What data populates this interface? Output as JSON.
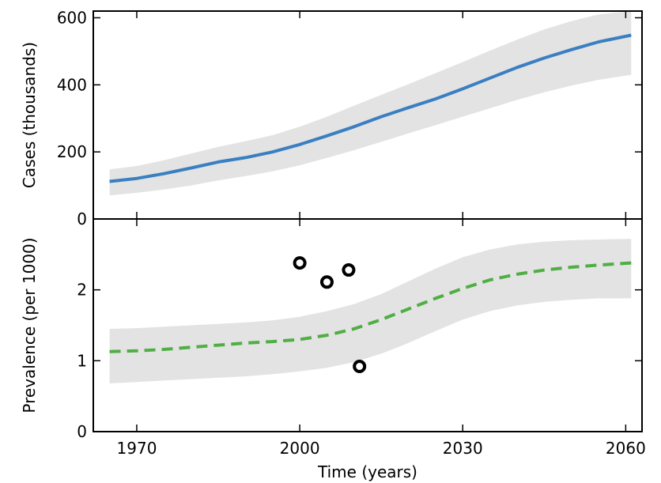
{
  "chart_data": [
    {
      "type": "area",
      "panel": "top",
      "ylabel": "Cases (thousands)",
      "xlabel": "",
      "xlim": [
        1962,
        2063
      ],
      "ylim": [
        0,
        620
      ],
      "xticks": [
        1970,
        2000,
        2030,
        2060
      ],
      "yticks": [
        0,
        200,
        400,
        600
      ],
      "ytick_labels": [
        "0",
        "200",
        "400",
        "600"
      ],
      "grid": false,
      "series": [
        {
          "style": "solid-line",
          "color": "#3a7fc1",
          "x": [
            1965,
            1970,
            1975,
            1980,
            1985,
            1990,
            1995,
            2000,
            2005,
            2010,
            2015,
            2020,
            2025,
            2030,
            2035,
            2040,
            2045,
            2050,
            2055,
            2061
          ],
          "y": [
            112,
            121,
            135,
            152,
            170,
            183,
            200,
            222,
            248,
            275,
            305,
            332,
            358,
            388,
            420,
            452,
            480,
            505,
            528,
            548
          ]
        }
      ],
      "band": {
        "color": "#e3e3e3",
        "x": [
          1965,
          1970,
          1975,
          1980,
          1985,
          1990,
          1995,
          2000,
          2005,
          2010,
          2015,
          2020,
          2025,
          2030,
          2035,
          2040,
          2045,
          2050,
          2055,
          2061
        ],
        "lower": [
          70,
          78,
          88,
          100,
          115,
          128,
          142,
          160,
          182,
          205,
          230,
          255,
          280,
          305,
          330,
          355,
          378,
          398,
          415,
          430
        ],
        "upper": [
          148,
          158,
          175,
          195,
          215,
          232,
          250,
          275,
          305,
          338,
          370,
          402,
          435,
          468,
          502,
          535,
          565,
          590,
          610,
          620
        ]
      }
    },
    {
      "type": "line",
      "panel": "bottom",
      "ylabel": "Prevalence (per 1000)",
      "xlabel": "Time (years)",
      "xlim": [
        1962,
        2063
      ],
      "ylim": [
        0,
        3
      ],
      "xticks": [
        1970,
        2000,
        2030,
        2060
      ],
      "xtick_labels": [
        "1970",
        "2000",
        "2030",
        "2060"
      ],
      "yticks": [
        0,
        1,
        2
      ],
      "ytick_labels": [
        "0",
        "1",
        "2"
      ],
      "grid": false,
      "series": [
        {
          "style": "dashed-line",
          "color": "#4fae44",
          "x": [
            1965,
            1970,
            1975,
            1980,
            1985,
            1990,
            1995,
            2000,
            2005,
            2010,
            2015,
            2020,
            2025,
            2030,
            2035,
            2040,
            2045,
            2050,
            2055,
            2061
          ],
          "y": [
            1.13,
            1.14,
            1.16,
            1.19,
            1.22,
            1.25,
            1.27,
            1.3,
            1.36,
            1.45,
            1.58,
            1.73,
            1.88,
            2.02,
            2.14,
            2.22,
            2.28,
            2.32,
            2.35,
            2.38
          ]
        },
        {
          "style": "open-circles",
          "color": "#000000",
          "x": [
            2000,
            2005,
            2009,
            2011
          ],
          "y": [
            2.38,
            2.11,
            2.28,
            0.92
          ]
        }
      ],
      "band": {
        "color": "#e3e3e3",
        "x": [
          1965,
          1970,
          1975,
          1980,
          1985,
          1990,
          1995,
          2000,
          2005,
          2010,
          2015,
          2020,
          2025,
          2030,
          2035,
          2040,
          2045,
          2050,
          2055,
          2061
        ],
        "lower": [
          0.68,
          0.7,
          0.72,
          0.74,
          0.76,
          0.78,
          0.81,
          0.85,
          0.9,
          0.98,
          1.1,
          1.25,
          1.42,
          1.58,
          1.7,
          1.78,
          1.83,
          1.86,
          1.88,
          1.88
        ],
        "upper": [
          1.45,
          1.46,
          1.48,
          1.5,
          1.52,
          1.54,
          1.57,
          1.62,
          1.7,
          1.8,
          1.94,
          2.12,
          2.3,
          2.46,
          2.57,
          2.64,
          2.68,
          2.7,
          2.71,
          2.72
        ]
      }
    }
  ]
}
